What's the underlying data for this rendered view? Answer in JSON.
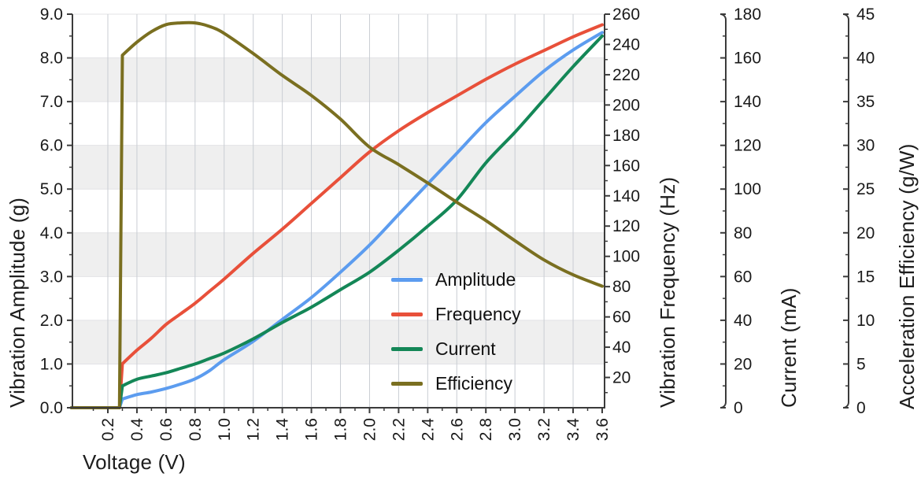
{
  "chart_data": {
    "type": "line",
    "title": "",
    "x_axis": {
      "label": "Voltage (V)",
      "tick_labels": [
        "0.2",
        "0.4",
        "0.6",
        "0.8",
        "1.0",
        "1.2",
        "1.4",
        "1.6",
        "1.8",
        "2.0",
        "2.2",
        "2.4",
        "2.6",
        "2.8",
        "3.0",
        "3.2",
        "3.4",
        "3.6"
      ],
      "minor_tick_step": 0.1,
      "range": [
        -0.05,
        3.62
      ]
    },
    "y_axes": {
      "amplitude": {
        "label": "Vibration Amplitude (g)",
        "range": [
          0,
          9
        ],
        "tick_labels": [
          "0.0",
          "1.0",
          "2.0",
          "3.0",
          "4.0",
          "5.0",
          "6.0",
          "7.0",
          "8.0",
          "9.0"
        ],
        "minor_tick_step": 0.5
      },
      "frequency": {
        "label": "Vibration Frequency (Hz)",
        "range": [
          0,
          260
        ],
        "ticks": [
          20,
          40,
          60,
          80,
          100,
          120,
          140,
          160,
          180,
          200,
          220,
          240,
          260
        ],
        "minor_tick_step": 10
      },
      "current": {
        "label": "Current (mA)",
        "range": [
          0,
          180
        ],
        "ticks": [
          0,
          20,
          40,
          60,
          80,
          100,
          120,
          140,
          160,
          180
        ],
        "minor_tick_step": 10
      },
      "efficiency": {
        "label": "Acceleration Efficiency (g/W)",
        "range": [
          0,
          45
        ],
        "ticks": [
          0,
          5,
          10,
          15,
          20,
          25,
          30,
          35,
          40,
          45
        ],
        "minor_tick_step": 2.5
      }
    },
    "x": [
      -0.05,
      0.28,
      0.3,
      0.4,
      0.5,
      0.6,
      0.7,
      0.8,
      0.9,
      1.0,
      1.2,
      1.4,
      1.6,
      1.8,
      2.0,
      2.2,
      2.4,
      2.6,
      2.8,
      3.0,
      3.2,
      3.4,
      3.6
    ],
    "series": [
      {
        "name": "Amplitude",
        "axis": "amplitude",
        "color": "#5c9cef",
        "values": [
          0,
          0,
          0.2,
          0.3,
          0.36,
          0.44,
          0.54,
          0.66,
          0.85,
          1.1,
          1.52,
          2.02,
          2.52,
          3.1,
          3.72,
          4.42,
          5.12,
          5.82,
          6.52,
          7.12,
          7.7,
          8.18,
          8.58
        ]
      },
      {
        "name": "Frequency",
        "axis": "frequency",
        "color": "#e8503a",
        "values": [
          0,
          0,
          29,
          38,
          46,
          55,
          62,
          69,
          77,
          85,
          102,
          118,
          135,
          152,
          169,
          183,
          195,
          206,
          217,
          227,
          236,
          245,
          253
        ]
      },
      {
        "name": "Current",
        "axis": "current",
        "color": "#148757",
        "values": [
          0,
          0,
          10,
          13,
          14.5,
          16,
          18,
          20,
          22.5,
          25,
          31.5,
          39,
          46,
          54,
          62,
          72,
          83,
          95,
          112,
          126,
          141,
          156,
          170
        ]
      },
      {
        "name": "Efficiency",
        "axis": "efficiency",
        "color": "#7a6f20",
        "values": [
          0,
          0,
          40.3,
          41.8,
          43.0,
          43.8,
          44.0,
          44.0,
          43.6,
          42.8,
          40.5,
          38.0,
          35.7,
          33.0,
          29.8,
          27.8,
          25.7,
          23.5,
          21.4,
          19.1,
          16.9,
          15.2,
          13.9
        ]
      }
    ],
    "grid": {
      "shaded_bands_amplitude": [
        [
          1,
          2
        ],
        [
          3,
          4
        ],
        [
          5,
          6
        ],
        [
          7,
          8
        ]
      ],
      "vertical_gridlines_every": 0.2
    },
    "legend": {
      "position": "inside-lower-right",
      "items": [
        "Amplitude",
        "Frequency",
        "Current",
        "Efficiency"
      ]
    },
    "style": {
      "band_fill": "#efefef",
      "vgrid_color": "#c9cdd3",
      "hgrid_color": "#e3e3e6",
      "axis_color": "#3b3b3b",
      "tick_label_color": "#1a1a1a"
    }
  }
}
